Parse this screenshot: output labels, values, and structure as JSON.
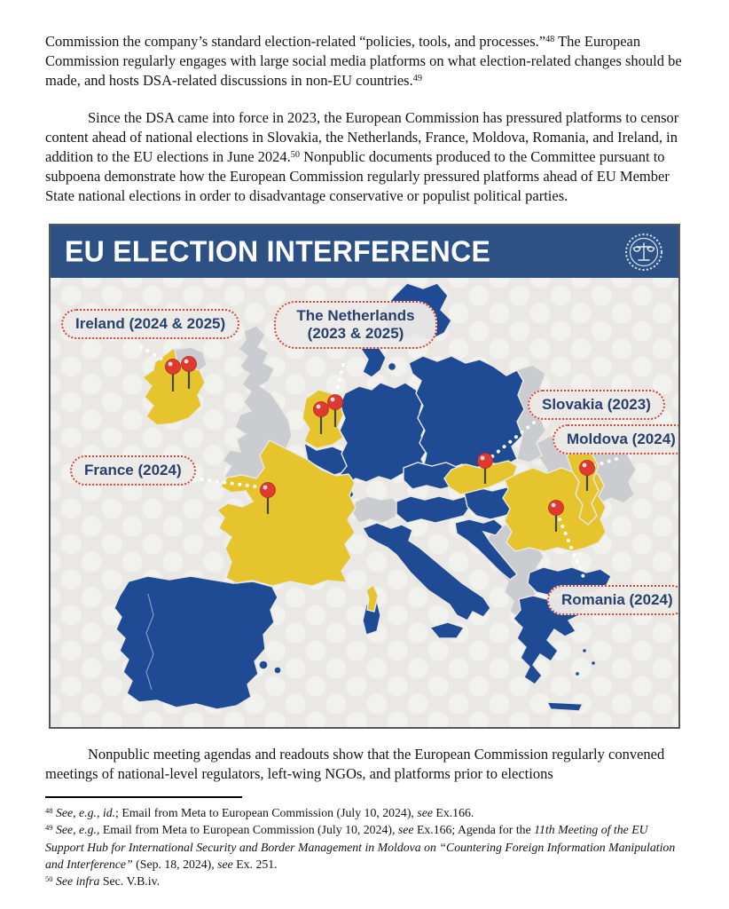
{
  "document": {
    "paragraphs": {
      "p1": {
        "segments": [
          {
            "t": "Commission the company’s standard election-related “policies, tools, and processes.”"
          },
          {
            "t": "48",
            "sup": true
          },
          {
            "t": " The European Commission regularly engages with large social media platforms on what election-related changes should be made, and hosts DSA-related discussions in non-EU countries."
          },
          {
            "t": "49",
            "sup": true
          }
        ]
      },
      "p2": {
        "segments": [
          {
            "t": "Since the DSA came into force in 2023, the European Commission has pressured platforms to censor content ahead of national elections in Slovakia, the Netherlands, France, Moldova, Romania, and Ireland, in addition to the EU elections in June 2024."
          },
          {
            "t": "50",
            "sup": true
          },
          {
            "t": " Nonpublic documents produced to the Committee pursuant to subpoena demonstrate how the European Commission regularly pressured platforms ahead of EU Member State national elections in order to disadvantage conservative or populist political parties."
          }
        ]
      },
      "p3": {
        "segments": [
          {
            "t": "Nonpublic meeting agendas and readouts show that the European Commission regularly convened meetings of national-level regulators, left-wing NGOs, and platforms prior to elections"
          }
        ]
      }
    },
    "footnotes": {
      "fn48": {
        "segments": [
          {
            "t": "48",
            "sup": true
          },
          {
            "t": " "
          },
          {
            "t": "See, e.g., id.",
            "i": true
          },
          {
            "t": "; Email from Meta to European Commission (July 10, 2024), "
          },
          {
            "t": "see",
            "i": true
          },
          {
            "t": " Ex.166."
          }
        ]
      },
      "fn49": {
        "segments": [
          {
            "t": "49",
            "sup": true
          },
          {
            "t": " "
          },
          {
            "t": "See, e.g.",
            "i": true
          },
          {
            "t": ", Email from Meta to European Commission (July 10, 2024), "
          },
          {
            "t": "see",
            "i": true
          },
          {
            "t": " Ex.166; Agenda for the "
          },
          {
            "t": "11th Meeting of the EU Support Hub for International Security and Border Management in Moldova on “Countering Foreign Information Manipulation and Interference”",
            "i": true
          },
          {
            "t": " (Sep. 18, 2024), "
          },
          {
            "t": "see",
            "i": true
          },
          {
            "t": " Ex. 251."
          }
        ]
      },
      "fn50": {
        "segments": [
          {
            "t": "50",
            "sup": true
          },
          {
            "t": " "
          },
          {
            "t": "See infra",
            "i": true
          },
          {
            "t": " Sec. V.B.iv."
          }
        ]
      }
    }
  },
  "infographic": {
    "title": "EU ELECTION INTERFERENCE",
    "seal_icon": "scales-of-justice-seal",
    "colors": {
      "header_bg": "#2d5185",
      "eu_member": "#1e4b94",
      "highlighted": "#e5c42e",
      "non_eu": "#cbccd0",
      "background": "#e9e8e4",
      "pin": "#e0392f",
      "label_text": "#27406e",
      "label_border": "#d8453a"
    },
    "labels": {
      "ireland": "Ireland (2024 & 2025)",
      "netherlands": "The Netherlands (2023 & 2025)",
      "slovakia": "Slovakia (2023)",
      "moldova": "Moldova (2024)",
      "france": "France (2024)",
      "romania": "Romania (2024)"
    }
  }
}
